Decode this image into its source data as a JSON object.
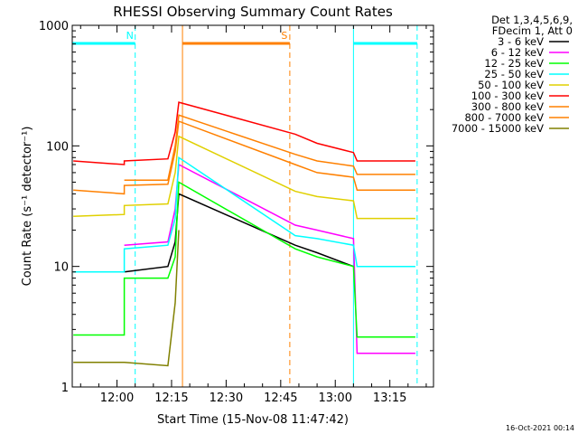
{
  "chart_data": {
    "type": "line",
    "title": "RHESSI Observing Summary Count Rates",
    "xlabel": "Start Time (15-Nov-08 11:47:42)",
    "ylabel": "Count Rate (s⁻¹ detector⁻¹)",
    "yscale": "log",
    "ylim": [
      1,
      1000
    ],
    "xlim": [
      "11:47:42",
      "13:27:00"
    ],
    "x_ticks": [
      "12:00",
      "12:15",
      "12:30",
      "12:45",
      "13:00",
      "13:15"
    ],
    "y_ticks": [
      "1",
      "10",
      "100",
      "1000"
    ],
    "legend_header": [
      "Det 1,3,4,5,6,9,",
      "FDecim 1, Att 0"
    ],
    "legend_position": "right",
    "grid": false,
    "markers": [
      {
        "label": "N",
        "kind": "night",
        "color": "#00ffff",
        "bar": [
          "11:47:42",
          "12:05:00"
        ],
        "dashed_at": "12:05:00"
      },
      {
        "label": "",
        "kind": "night",
        "color": "#00ffff",
        "bar": [
          "13:05:00",
          "13:22:30"
        ],
        "dashed_at": "13:22:30",
        "solid_at": "13:05:00"
      },
      {
        "label": "S",
        "kind": "saa",
        "color": "#ff8000",
        "bar": [
          "12:18:00",
          "12:47:30"
        ],
        "solid_at": "12:18:00",
        "dashed_at": "12:47:30"
      },
      {
        "label": "",
        "kind": "edge",
        "color": "#00ffff",
        "solid_at": "11:47:42"
      }
    ],
    "series": [
      {
        "name": "3 - 6 keV",
        "color": "#000000",
        "points": [
          [
            "12:02",
            9
          ],
          [
            "12:14",
            10
          ],
          [
            "12:16",
            16
          ],
          [
            "12:17",
            40
          ],
          [
            "12:49",
            15
          ],
          [
            "12:55",
            13
          ],
          [
            "13:05",
            10
          ],
          [
            "13:06",
            0
          ]
        ]
      },
      {
        "name": "6 - 12 keV",
        "color": "#ff00ff",
        "points": [
          [
            "12:02",
            15
          ],
          [
            "12:14",
            16
          ],
          [
            "12:16",
            30
          ],
          [
            "12:17",
            70
          ],
          [
            "12:49",
            22
          ],
          [
            "12:55",
            20
          ],
          [
            "13:05",
            17
          ],
          [
            "13:06",
            1.9
          ],
          [
            "13:22",
            1.9
          ]
        ]
      },
      {
        "name": "12 - 25 keV",
        "color": "#00ff00",
        "points": [
          [
            "11:48",
            2.7
          ],
          [
            "12:02",
            2.7
          ],
          [
            "12:02",
            8
          ],
          [
            "12:14",
            8
          ],
          [
            "12:16",
            12
          ],
          [
            "12:17",
            50
          ],
          [
            "12:49",
            14
          ],
          [
            "12:55",
            12
          ],
          [
            "13:05",
            10
          ],
          [
            "13:06",
            2.6
          ],
          [
            "13:22",
            2.6
          ]
        ]
      },
      {
        "name": "25 - 50 keV",
        "color": "#00ffff",
        "points": [
          [
            "11:48",
            9
          ],
          [
            "12:02",
            9
          ],
          [
            "12:02",
            14
          ],
          [
            "12:14",
            15
          ],
          [
            "12:16",
            25
          ],
          [
            "12:17",
            80
          ],
          [
            "12:49",
            18
          ],
          [
            "12:55",
            17
          ],
          [
            "13:05",
            15
          ],
          [
            "13:06",
            10
          ],
          [
            "13:22",
            10
          ]
        ]
      },
      {
        "name": "50 - 100 keV",
        "color": "#e0d000",
        "points": [
          [
            "11:48",
            26
          ],
          [
            "12:02",
            27
          ],
          [
            "12:02",
            32
          ],
          [
            "12:14",
            33
          ],
          [
            "12:16",
            60
          ],
          [
            "12:17",
            120
          ],
          [
            "12:49",
            42
          ],
          [
            "12:55",
            38
          ],
          [
            "13:05",
            35
          ],
          [
            "13:06",
            25
          ],
          [
            "13:22",
            25
          ]
        ]
      },
      {
        "name": "100 - 300 keV",
        "color": "#ff0000",
        "points": [
          [
            "11:48",
            75
          ],
          [
            "12:02",
            70
          ],
          [
            "12:02",
            75
          ],
          [
            "12:14",
            78
          ],
          [
            "12:16",
            130
          ],
          [
            "12:17",
            230
          ],
          [
            "12:49",
            125
          ],
          [
            "12:55",
            105
          ],
          [
            "13:05",
            88
          ],
          [
            "13:06",
            75
          ],
          [
            "13:22",
            75
          ]
        ]
      },
      {
        "name": "300 - 800 keV",
        "color": "#ff8000",
        "points": [
          [
            "11:48",
            43
          ],
          [
            "12:02",
            40
          ],
          [
            "12:02",
            47
          ],
          [
            "12:14",
            48
          ],
          [
            "12:16",
            90
          ],
          [
            "12:17",
            160
          ],
          [
            "12:49",
            70
          ],
          [
            "12:55",
            60
          ],
          [
            "13:05",
            55
          ],
          [
            "13:06",
            43
          ],
          [
            "13:22",
            43
          ]
        ]
      },
      {
        "name": "800 - 7000 keV",
        "color": "#ff8000",
        "points": [
          [
            "12:02",
            52
          ],
          [
            "12:14",
            52
          ],
          [
            "12:16",
            100
          ],
          [
            "12:17",
            180
          ],
          [
            "12:49",
            85
          ],
          [
            "12:55",
            75
          ],
          [
            "13:05",
            68
          ],
          [
            "13:06",
            58
          ],
          [
            "13:22",
            58
          ]
        ]
      },
      {
        "name": "7000 - 15000 keV",
        "color": "#808000",
        "points": [
          [
            "11:48",
            1.6
          ],
          [
            "12:02",
            1.6
          ],
          [
            "12:14",
            1.5
          ],
          [
            "12:16",
            5
          ],
          [
            "12:17",
            20
          ]
        ]
      }
    ],
    "footer_date": "16-Oct-2021 00:14"
  }
}
